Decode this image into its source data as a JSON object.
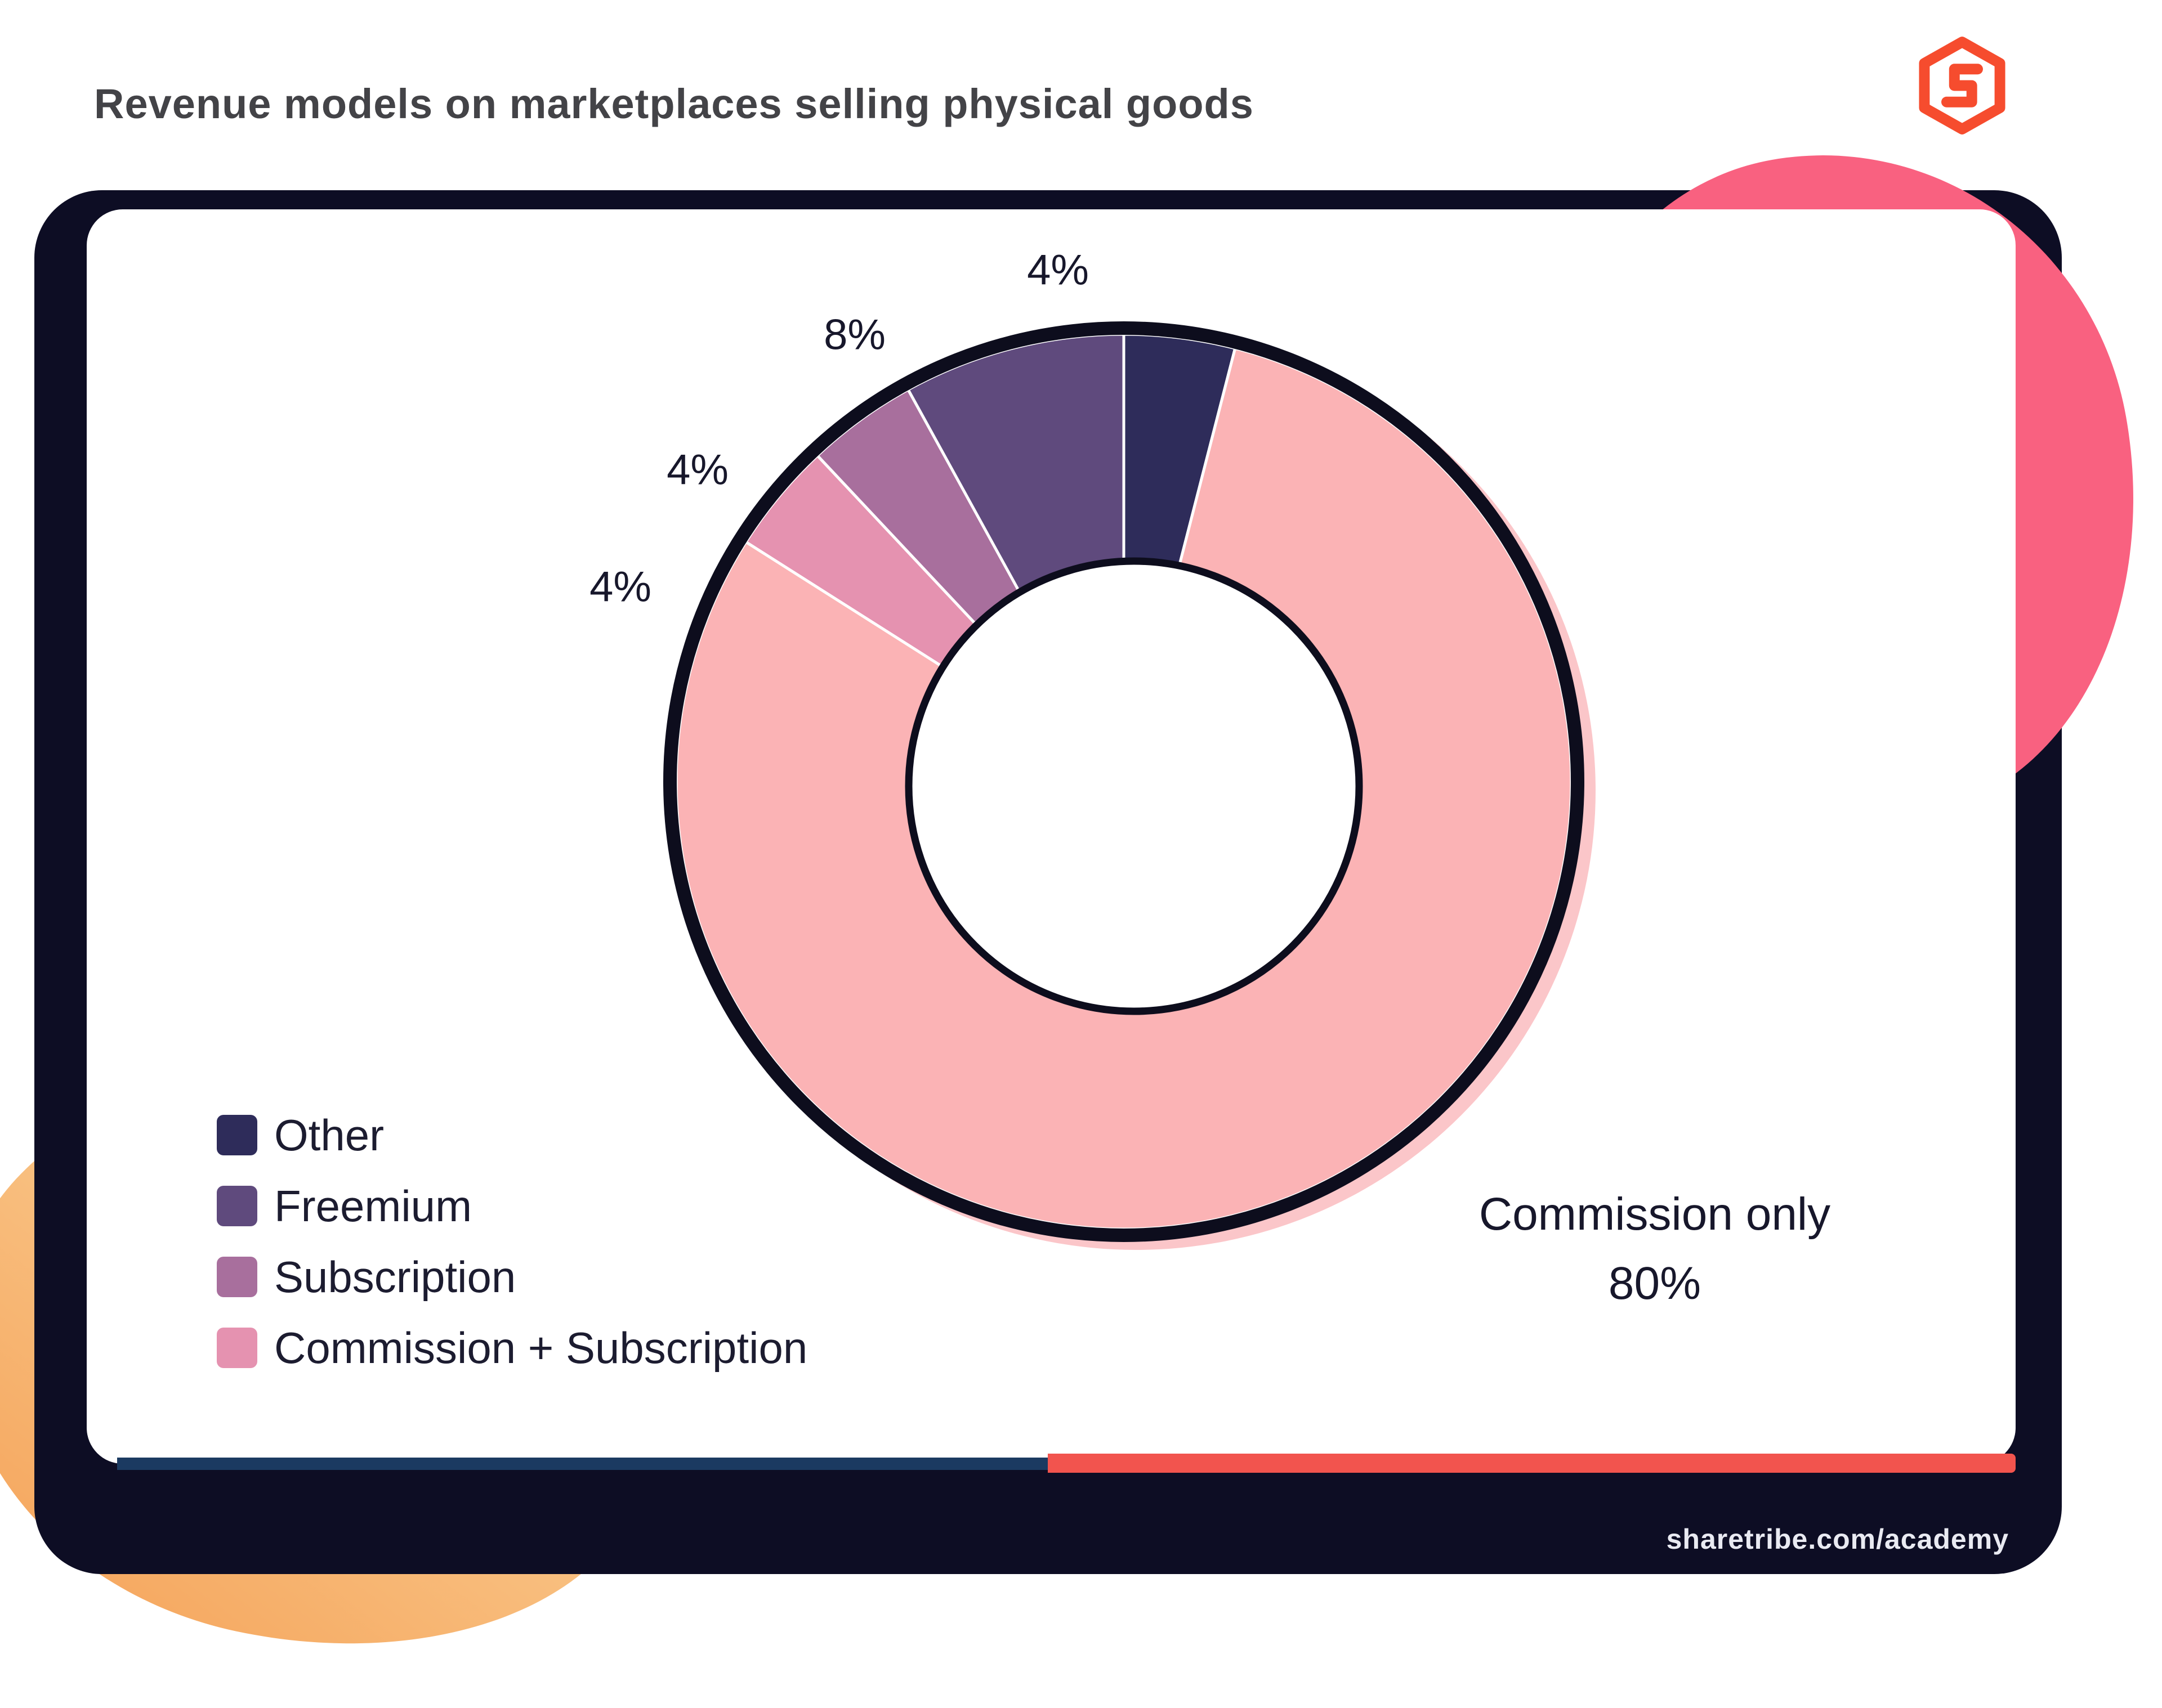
{
  "page": {
    "title": "Revenue models on marketplaces selling physical goods",
    "footer_url": "sharetribe.com/academy",
    "brand_icon": "sharetribe-logo",
    "accent_colors": {
      "logo_orange": "#f64c2e",
      "frame_navy": "#0d0d24",
      "pink_blob": "#f96180",
      "orange_blob_start": "#fcd9a2",
      "orange_blob_end": "#f5a75f",
      "strip_blue": "#1b3a61",
      "strip_coral": "#f2544e"
    }
  },
  "chart_data": {
    "type": "pie",
    "subtype": "donut",
    "title": "Revenue models on marketplaces selling physical goods",
    "unit": "percent",
    "direction": "clockwise",
    "start_angle_deg": 0,
    "slices": [
      {
        "label": "Other",
        "value": 4,
        "color": "#2e2c5a"
      },
      {
        "label": "Commission only",
        "value": 80,
        "color": "#fbb3b5"
      },
      {
        "label": "Commission + Subscription",
        "value": 4,
        "color": "#e592b0"
      },
      {
        "label": "Subscription",
        "value": 4,
        "color": "#a86f9d"
      },
      {
        "label": "Freemium",
        "value": 8,
        "color": "#5f4a7d"
      }
    ],
    "legend": [
      {
        "label": "Other",
        "color": "#2e2c5a"
      },
      {
        "label": "Freemium",
        "color": "#5f4a7d"
      },
      {
        "label": "Subscription",
        "color": "#a86f9d"
      },
      {
        "label": "Commission + Subscription",
        "color": "#e592b0"
      }
    ],
    "labels": {
      "other_pct": "4%",
      "freemium_pct": "8%",
      "subscription_pct": "4%",
      "commission_subscription_pct": "4%",
      "commission_only_line1": "Commission only",
      "commission_only_line2": "80%"
    },
    "ring_outline_color": "#0d0d1d",
    "hole_color": "#ffffff",
    "offset_shadow_color": "#fbc6c9",
    "legend_position": "bottom-left",
    "grid": false
  }
}
